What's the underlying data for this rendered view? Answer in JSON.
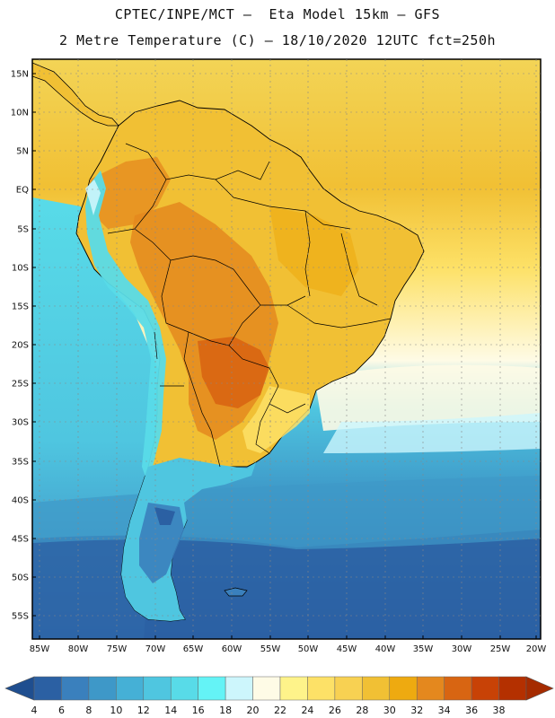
{
  "header": {
    "line1": "CPTEC/INPE/MCT –  Eta Model 15km – GFS",
    "line2": "2 Metre Temperature (C) – 18/10/2020 12UTC fct=250h"
  },
  "axes": {
    "lat_labels": [
      "15N",
      "10N",
      "5N",
      "EQ",
      "5S",
      "10S",
      "15S",
      "20S",
      "25S",
      "30S",
      "35S",
      "40S",
      "45S",
      "50S",
      "55S"
    ],
    "lon_labels": [
      "85W",
      "80W",
      "75W",
      "70W",
      "65W",
      "60W",
      "55W",
      "50W",
      "45W",
      "40W",
      "35W",
      "30W",
      "25W",
      "20W"
    ]
  },
  "colorbar": {
    "labels": [
      "4",
      "6",
      "8",
      "10",
      "12",
      "14",
      "16",
      "18",
      "20",
      "22",
      "24",
      "26",
      "28",
      "30",
      "32",
      "34",
      "36",
      "38"
    ],
    "colors": [
      "#2b60a3",
      "#3a80bd",
      "#3e98c8",
      "#45b0d6",
      "#4fc6e0",
      "#58dbe8",
      "#64f3f6",
      "#cdf6fc",
      "#fefbe6",
      "#fef38a",
      "#fde167",
      "#f8d152",
      "#f1c034",
      "#eeaa10",
      "#e4881e",
      "#d86512",
      "#c84206",
      "#b43000"
    ],
    "under_color": "#1f4e8f",
    "over_color": "#a52b00"
  },
  "map": {
    "ocean_north_color": "#f3d456",
    "ocean_south_color": "#4fc6e0",
    "ocean_far_south_color": "#2b60a3",
    "land_north_color": "#f1c034",
    "land_hot_color": "#e4881e",
    "andes_color": "#58dbe8",
    "patagonia_color": "#3a80bd",
    "border_color": "#000000"
  }
}
